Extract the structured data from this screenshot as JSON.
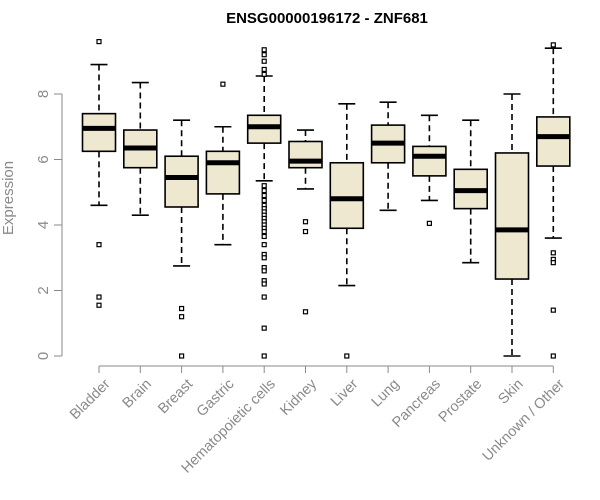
{
  "chart_data": {
    "type": "boxplot",
    "title": "ENSG00000196172 - ZNF681",
    "xlabel": "",
    "ylabel": "Expression",
    "ylim": [
      0,
      9.6
    ],
    "yticks": [
      0,
      2,
      4,
      6,
      8
    ],
    "grid": false,
    "legend": "none",
    "colors": {
      "box_fill": "#EEE8D0",
      "stroke": "#000000",
      "axis": "#8a8a8a",
      "title": "#000000"
    },
    "categories": [
      "Bladder",
      "Brain",
      "Breast",
      "Gastric",
      "Hematopoietic cells",
      "Kidney",
      "Liver",
      "Lung",
      "Pancreas",
      "Prostate",
      "Skin",
      "Unknown / Other"
    ],
    "boxes": [
      {
        "category": "Bladder",
        "whisker_low": 4.6,
        "q1": 6.25,
        "median": 6.95,
        "q3": 7.4,
        "whisker_high": 8.9,
        "outliers": [
          9.6,
          3.4,
          1.8,
          1.55
        ]
      },
      {
        "category": "Brain",
        "whisker_low": 4.3,
        "q1": 5.75,
        "median": 6.35,
        "q3": 6.9,
        "whisker_high": 8.35,
        "outliers": []
      },
      {
        "category": "Breast",
        "whisker_low": 2.75,
        "q1": 4.55,
        "median": 5.45,
        "q3": 6.1,
        "whisker_high": 7.2,
        "outliers": [
          1.45,
          1.2,
          0.0
        ]
      },
      {
        "category": "Gastric",
        "whisker_low": 3.4,
        "q1": 4.95,
        "median": 5.9,
        "q3": 6.25,
        "whisker_high": 7.0,
        "outliers": [
          8.3
        ]
      },
      {
        "category": "Hematopoietic cells",
        "whisker_low": 5.35,
        "q1": 6.5,
        "median": 7.0,
        "q3": 7.35,
        "whisker_high": 8.55,
        "outliers": [
          9.35,
          9.2,
          9.0,
          8.75,
          8.6,
          5.2,
          5.05,
          4.9,
          4.75,
          4.6,
          4.5,
          4.4,
          4.3,
          4.2,
          4.1,
          4.0,
          3.9,
          3.8,
          3.65,
          3.4,
          3.1,
          3.0,
          2.7,
          2.6,
          2.3,
          2.2,
          1.8,
          0.85,
          0.0
        ]
      },
      {
        "category": "Kidney",
        "whisker_low": 5.1,
        "q1": 5.75,
        "median": 5.95,
        "q3": 6.55,
        "whisker_high": 6.9,
        "outliers": [
          4.1,
          3.8,
          1.35
        ]
      },
      {
        "category": "Liver",
        "whisker_low": 2.15,
        "q1": 3.9,
        "median": 4.8,
        "q3": 5.9,
        "whisker_high": 7.7,
        "outliers": [
          0.0
        ]
      },
      {
        "category": "Lung",
        "whisker_low": 4.45,
        "q1": 5.9,
        "median": 6.5,
        "q3": 7.05,
        "whisker_high": 7.75,
        "outliers": []
      },
      {
        "category": "Pancreas",
        "whisker_low": 4.75,
        "q1": 5.5,
        "median": 6.1,
        "q3": 6.4,
        "whisker_high": 7.35,
        "outliers": [
          4.05
        ]
      },
      {
        "category": "Prostate",
        "whisker_low": 2.85,
        "q1": 4.5,
        "median": 5.05,
        "q3": 5.7,
        "whisker_high": 7.2,
        "outliers": []
      },
      {
        "category": "Skin",
        "whisker_low": 0.0,
        "q1": 2.35,
        "median": 3.85,
        "q3": 6.2,
        "whisker_high": 8.0,
        "outliers": []
      },
      {
        "category": "Unknown / Other",
        "whisker_low": 3.6,
        "q1": 5.8,
        "median": 6.7,
        "q3": 7.3,
        "whisker_high": 9.4,
        "outliers": [
          9.5,
          3.15,
          2.95,
          2.85,
          1.4,
          0.0
        ]
      }
    ]
  }
}
